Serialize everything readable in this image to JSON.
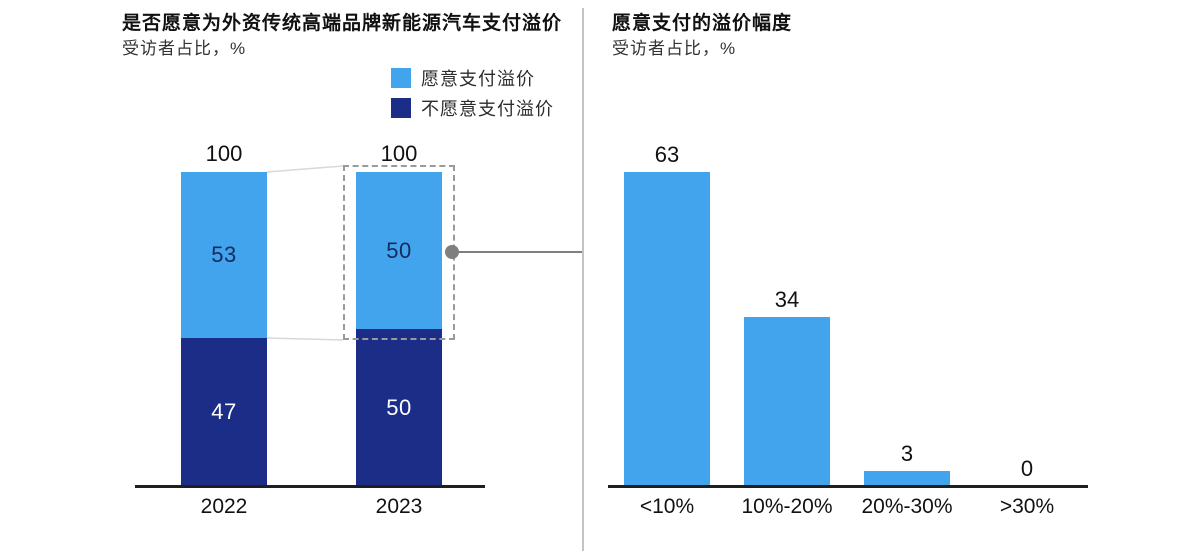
{
  "page": {
    "background": "#ffffff"
  },
  "left_chart": {
    "title": "是否愿意为外资传统高端品牌新能源汽车支付溢价",
    "subtitle": "受访者占比，%"
  },
  "right_chart": {
    "title": "愿意支付的溢价幅度",
    "subtitle": "受访者占比，%"
  },
  "legend": {
    "items": [
      {
        "label": "愿意支付溢价",
        "color": "#41a4ec"
      },
      {
        "label": "不愿意支付溢价",
        "color": "#1b2d87"
      }
    ]
  },
  "colors": {
    "light_blue": "#41a4ec",
    "navy": "#1b2d87",
    "text_on_light": "#162a5e",
    "text_on_navy": "#ffffff",
    "axis": "#1f1f1f",
    "leader_line": "#d8d8d8",
    "callout_gray": "#7f7f7f",
    "dashed_border": "#9a9a9a",
    "divider": "#c4c4c4"
  },
  "chart_data": [
    {
      "type": "bar",
      "variant": "stacked-column",
      "title": "是否愿意为外资传统高端品牌新能源汽车支付溢价",
      "subtitle": "受访者占比，%",
      "categories": [
        "2022",
        "2023"
      ],
      "series": [
        {
          "name": "愿意支付溢价",
          "color": "#41a4ec",
          "values": [
            53,
            50
          ]
        },
        {
          "name": "不愿意支付溢价",
          "color": "#1b2d87",
          "values": [
            47,
            50
          ]
        }
      ],
      "totals": [
        100,
        100
      ],
      "total_labels": [
        "100",
        "100"
      ],
      "ylim": [
        0,
        100
      ],
      "grid": false,
      "legend_position": "top-right",
      "annotation": "2023 愿意支付溢价 segment outlined with dashed box and gray connector dot linking to right chart"
    },
    {
      "type": "bar",
      "variant": "column",
      "title": "愿意支付的溢价幅度",
      "subtitle": "受访者占比，%",
      "categories": [
        "<10%",
        "10%-20%",
        "20%-30%",
        ">30%"
      ],
      "values": [
        63,
        34,
        3,
        0
      ],
      "value_labels": [
        "63",
        "34",
        "3",
        "0"
      ],
      "bar_color": "#41a4ec",
      "ylim": [
        0,
        63
      ],
      "grid": false
    }
  ]
}
